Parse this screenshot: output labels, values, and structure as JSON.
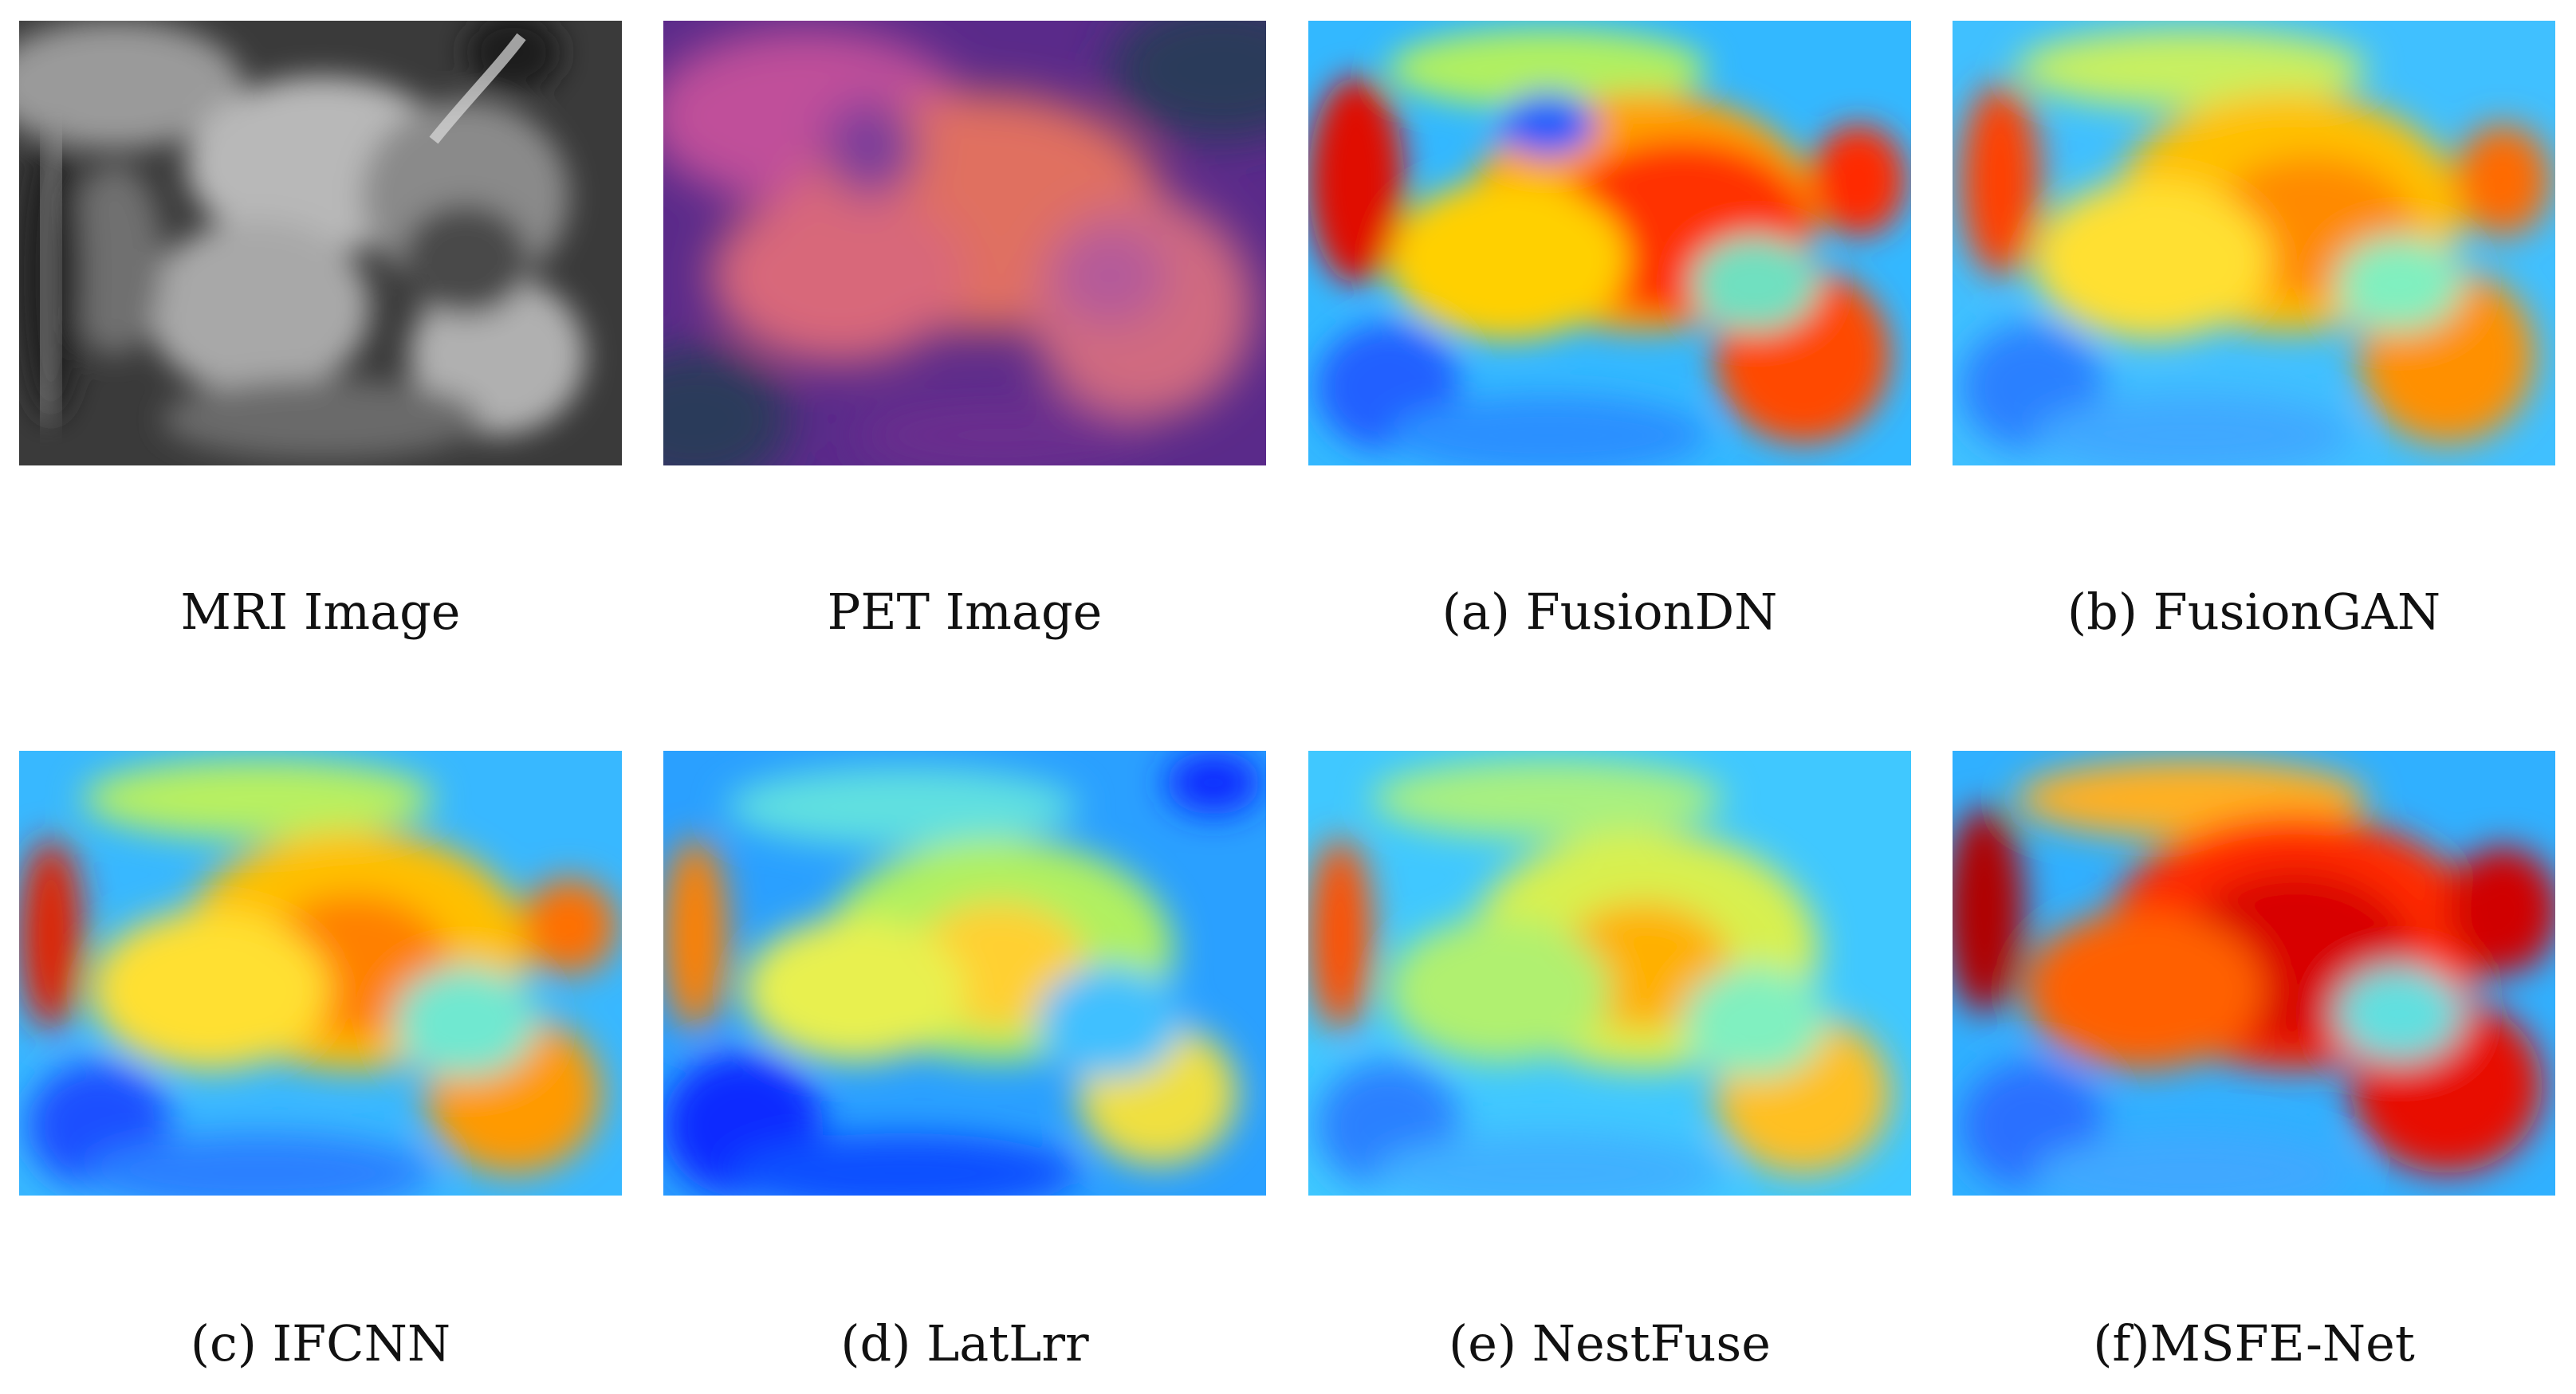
{
  "figure": {
    "panels": [
      {
        "id": "mri",
        "caption": "MRI Image",
        "style": "gray"
      },
      {
        "id": "pet",
        "caption": "PET Image",
        "style": "pet"
      },
      {
        "id": "fusiondn",
        "caption": "(a) FusionDN",
        "style": "jet",
        "intensity": 0.78
      },
      {
        "id": "fusiongan",
        "caption": "(b) FusionGAN",
        "style": "jet",
        "intensity": 0.66
      },
      {
        "id": "ifcnn",
        "caption": "(c) IFCNN",
        "style": "jet",
        "intensity": 0.66
      },
      {
        "id": "latlrr",
        "caption": "(d) LatLrr",
        "style": "jet",
        "intensity": 0.5
      },
      {
        "id": "nestfuse",
        "caption": "(e) NestFuse",
        "style": "jet",
        "intensity": 0.56
      },
      {
        "id": "msfenet",
        "caption": "(f)MSFE-Net",
        "style": "jet",
        "intensity": 0.92
      }
    ]
  }
}
